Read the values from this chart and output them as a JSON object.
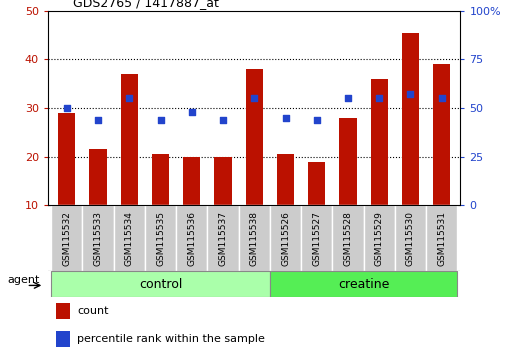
{
  "title": "GDS2765 / 1417887_at",
  "samples": [
    "GSM115532",
    "GSM115533",
    "GSM115534",
    "GSM115535",
    "GSM115536",
    "GSM115537",
    "GSM115538",
    "GSM115526",
    "GSM115527",
    "GSM115528",
    "GSM115529",
    "GSM115530",
    "GSM115531"
  ],
  "counts": [
    29,
    21.5,
    37,
    20.5,
    20,
    20,
    38,
    20.5,
    19,
    28,
    36,
    45.5,
    39
  ],
  "percentiles": [
    50,
    44,
    55,
    44,
    48,
    44,
    55,
    45,
    44,
    55,
    55,
    57,
    55
  ],
  "bar_color": "#bb1100",
  "dot_color": "#2244cc",
  "ylim_left": [
    10,
    50
  ],
  "ylim_right": [
    0,
    100
  ],
  "yticks_left": [
    10,
    20,
    30,
    40,
    50
  ],
  "yticks_right": [
    0,
    25,
    50,
    75,
    100
  ],
  "n_control": 7,
  "control_color": "#aaffaa",
  "creatine_color": "#55ee55",
  "group_label_control": "control",
  "group_label_creatine": "creatine",
  "agent_label": "agent",
  "legend_count": "count",
  "legend_percentile": "percentile rank within the sample",
  "bar_bottom": 10,
  "bar_width": 0.55,
  "dot_size": 18
}
